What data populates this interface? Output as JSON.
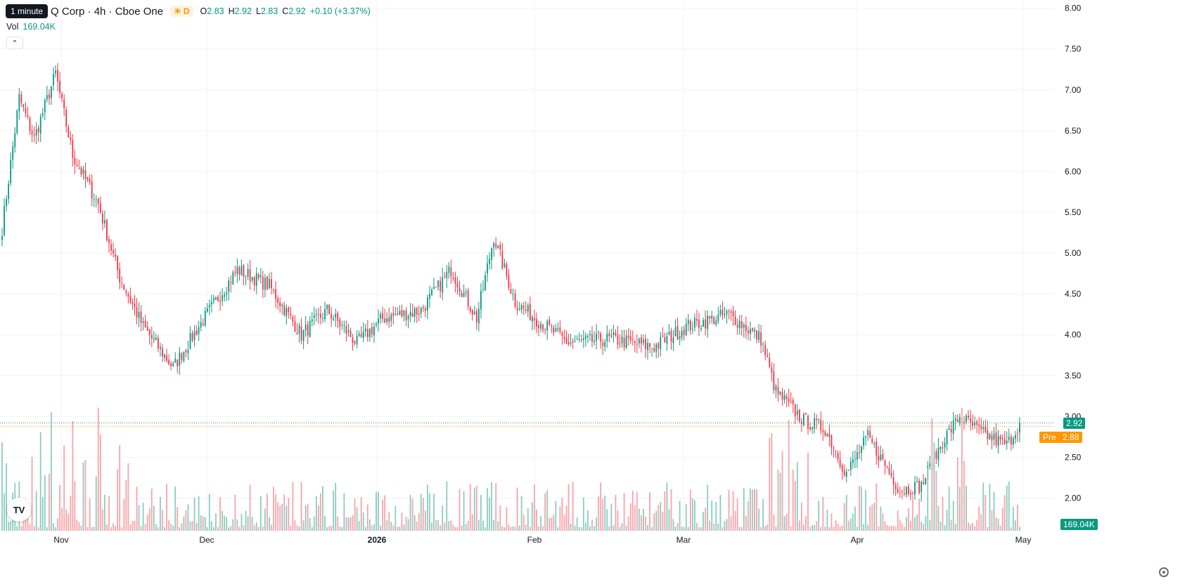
{
  "header": {
    "tooltip": "1 minute",
    "title": "Q Corp · 4h · Cboe One",
    "badge_letter": "D",
    "ohlc": [
      {
        "key": "O",
        "value": "2.83"
      },
      {
        "key": "H",
        "value": "2.92"
      },
      {
        "key": "L",
        "value": "2.83"
      },
      {
        "key": "C",
        "value": "2.92"
      }
    ],
    "change": "+0.10 (+3.37%)",
    "volume_label": "Vol",
    "volume_value": "169.04K"
  },
  "price_axis": {
    "last_price_label": "2.92",
    "pre_label": "Pre",
    "pre_price_label": "2.88",
    "volume_tag": "169.04K"
  },
  "colors": {
    "up": "#089981",
    "down": "#f23645",
    "up_volume": "#8ccdc1",
    "down_volume": "#f7a5aa",
    "pre": "#ff9800",
    "grid": "#f0f3fa"
  },
  "chart_data": {
    "type": "candlestick",
    "y_ticks": [
      "8.00",
      "7.50",
      "7.00",
      "6.50",
      "6.00",
      "5.50",
      "5.00",
      "4.50",
      "4.00",
      "3.50",
      "3.00",
      "2.50",
      "2.00"
    ],
    "ylim": [
      1.6,
      8.1
    ],
    "x_ticks": [
      "Nov",
      "Dec",
      "2026",
      "Feb",
      "Mar",
      "Apr",
      "May"
    ],
    "last_price": 2.92,
    "pre_price": 2.88,
    "anchors": [
      [
        0,
        5.3
      ],
      [
        3,
        5.9
      ],
      [
        8,
        6.9
      ],
      [
        15,
        6.4
      ],
      [
        25,
        7.2
      ],
      [
        33,
        6.2
      ],
      [
        45,
        5.6
      ],
      [
        55,
        4.7
      ],
      [
        66,
        4.1
      ],
      [
        80,
        3.6
      ],
      [
        92,
        4.1
      ],
      [
        110,
        4.8
      ],
      [
        125,
        4.6
      ],
      [
        140,
        4.0
      ],
      [
        152,
        4.3
      ],
      [
        166,
        3.9
      ],
      [
        178,
        4.2
      ],
      [
        196,
        4.3
      ],
      [
        210,
        4.8
      ],
      [
        222,
        4.2
      ],
      [
        230,
        5.2
      ],
      [
        240,
        4.4
      ],
      [
        252,
        4.15
      ],
      [
        265,
        3.9
      ],
      [
        285,
        3.95
      ],
      [
        305,
        3.85
      ],
      [
        320,
        4.1
      ],
      [
        340,
        4.25
      ],
      [
        355,
        3.95
      ],
      [
        362,
        3.3
      ],
      [
        375,
        2.95
      ],
      [
        385,
        2.85
      ],
      [
        395,
        2.3
      ],
      [
        405,
        2.75
      ],
      [
        420,
        2.1
      ],
      [
        430,
        2.15
      ],
      [
        440,
        2.7
      ],
      [
        448,
        3.0
      ],
      [
        458,
        2.8
      ],
      [
        470,
        2.65
      ],
      [
        476,
        2.92
      ]
    ],
    "n_candles": 477
  }
}
